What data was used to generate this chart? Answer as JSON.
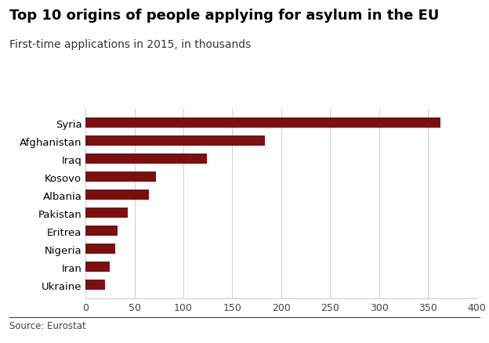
{
  "title": "Top 10 origins of people applying for asylum in the EU",
  "subtitle": "First-time applications in 2015, in thousands",
  "source": "Source: Eurostat",
  "categories": [
    "Ukraine",
    "Iran",
    "Nigeria",
    "Eritrea",
    "Pakistan",
    "Albania",
    "Kosovo",
    "Iraq",
    "Afghanistan",
    "Syria"
  ],
  "values": [
    20,
    25,
    30,
    33,
    43,
    65,
    72,
    124,
    183,
    363
  ],
  "bar_color": "#7b1010",
  "xlim": [
    0,
    400
  ],
  "xticks": [
    0,
    50,
    100,
    150,
    200,
    250,
    300,
    350,
    400
  ],
  "background_color": "#ffffff",
  "title_fontsize": 13,
  "subtitle_fontsize": 10,
  "tick_fontsize": 9,
  "label_fontsize": 9.5,
  "source_fontsize": 8.5,
  "bar_height": 0.55
}
